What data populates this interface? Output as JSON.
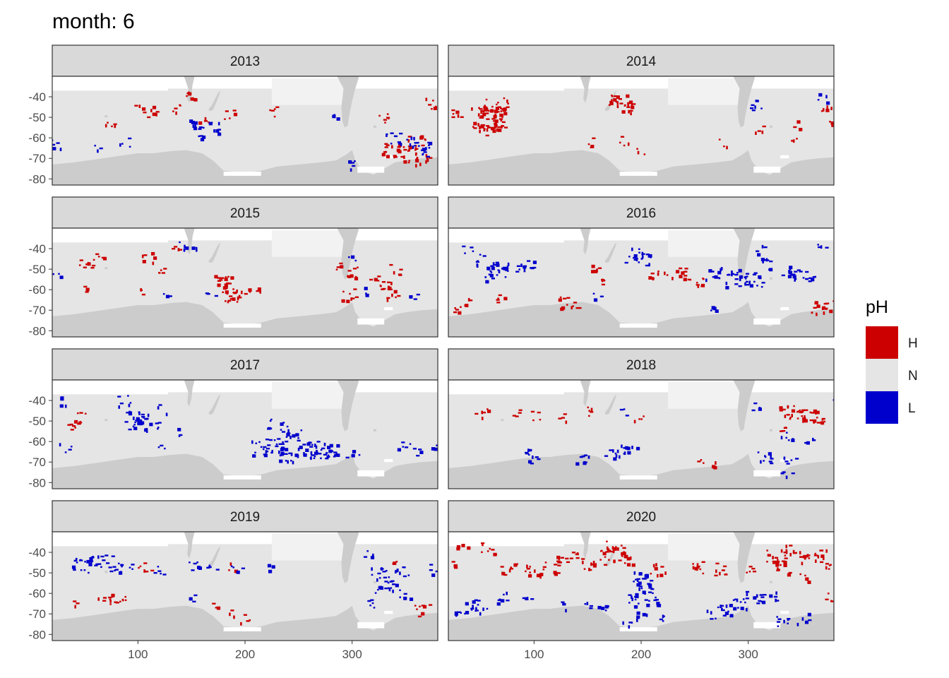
{
  "chart_data": {
    "type": "heatmap",
    "title": "month: 6",
    "facet_variable": "year",
    "x_ticks": [
      100,
      200,
      300
    ],
    "x_range": [
      20,
      380
    ],
    "y_ticks": [
      -40,
      -50,
      -60,
      -70,
      -80
    ],
    "y_range": [
      -83,
      -30
    ],
    "legend": {
      "title": "pH",
      "position": "right",
      "entries": [
        {
          "label": "H",
          "color": "#CC0000"
        },
        {
          "label": "N",
          "color": "#E5E5E5"
        },
        {
          "label": "L",
          "color": "#0000CC"
        }
      ]
    },
    "colors": {
      "ocean": "#E5E5E5",
      "land": "#CCCCCC",
      "ice_gap": "#FFFFFF",
      "strip_bg": "#D9D9D9",
      "border": "#333333"
    },
    "facets": [
      {
        "year": "2013",
        "H": [
          [
            112,
            -47,
            6
          ],
          [
            136,
            -45,
            5
          ],
          [
            151,
            -38,
            6
          ],
          [
            160,
            -52,
            4
          ],
          [
            185,
            -48,
            5
          ],
          [
            228,
            -47,
            5
          ],
          [
            330,
            -50,
            6
          ],
          [
            336,
            -66,
            14
          ],
          [
            352,
            -68,
            18
          ],
          [
            360,
            -62,
            12
          ],
          [
            365,
            -70,
            8
          ],
          [
            372,
            -43,
            6
          ],
          [
            74,
            -52,
            5
          ],
          [
            101,
            -46,
            4
          ]
        ],
        "L": [
          [
            155,
            -53,
            9
          ],
          [
            170,
            -55,
            7
          ],
          [
            158,
            -61,
            4
          ],
          [
            301,
            -73,
            5
          ],
          [
            338,
            -60,
            10
          ],
          [
            355,
            -62,
            8
          ],
          [
            366,
            -64,
            6
          ],
          [
            371,
            -67,
            6
          ],
          [
            25,
            -63,
            5
          ],
          [
            87,
            -62,
            4
          ],
          [
            60,
            -64,
            3
          ],
          [
            281,
            -50,
            3
          ]
        ]
      },
      {
        "year": "2014",
        "H": [
          [
            60,
            -50,
            42
          ],
          [
            48,
            -46,
            8
          ],
          [
            62,
            -44,
            10
          ],
          [
            73,
            -43,
            6
          ],
          [
            43,
            -54,
            6
          ],
          [
            56,
            -56,
            8
          ],
          [
            27,
            -47,
            6
          ],
          [
            173,
            -41,
            6
          ],
          [
            178,
            -42,
            10
          ],
          [
            184,
            -44,
            8
          ],
          [
            192,
            -45,
            5
          ],
          [
            155,
            -62,
            4
          ],
          [
            185,
            -61,
            4
          ],
          [
            200,
            -67,
            3
          ],
          [
            276,
            -62,
            3
          ],
          [
            310,
            -55,
            4
          ],
          [
            340,
            -59,
            3
          ],
          [
            345,
            -53,
            3
          ],
          [
            371,
            -45,
            5
          ],
          [
            374,
            -52,
            3
          ]
        ],
        "L": [
          [
            306,
            -46,
            4
          ],
          [
            370,
            -40,
            4
          ],
          [
            305,
            -42,
            3
          ]
        ]
      },
      {
        "year": "2015",
        "H": [
          [
            50,
            -47,
            8
          ],
          [
            62,
            -43,
            5
          ],
          [
            110,
            -44,
            6
          ],
          [
            120,
            -51,
            5
          ],
          [
            135,
            -39,
            4
          ],
          [
            180,
            -57,
            22
          ],
          [
            188,
            -63,
            10
          ],
          [
            197,
            -62,
            6
          ],
          [
            209,
            -59,
            4
          ],
          [
            288,
            -48,
            4
          ],
          [
            297,
            -62,
            8
          ],
          [
            302,
            -51,
            8
          ],
          [
            322,
            -55,
            6
          ],
          [
            330,
            -59,
            10
          ],
          [
            336,
            -62,
            5
          ],
          [
            340,
            -50,
            5
          ],
          [
            48,
            -60,
            3
          ],
          [
            100,
            -60,
            3
          ]
        ],
        "L": [
          [
            140,
            -38,
            4
          ],
          [
            128,
            -62,
            3
          ],
          [
            149,
            -38,
            3
          ],
          [
            23,
            -52,
            3
          ],
          [
            168,
            -62,
            3
          ],
          [
            298,
            -44,
            3
          ],
          [
            312,
            -60,
            3
          ],
          [
            356,
            -63,
            3
          ]
        ]
      },
      {
        "year": "2016",
        "H": [
          [
            236,
            -52,
            10
          ],
          [
            252,
            -55,
            8
          ],
          [
            157,
            -49,
            5
          ],
          [
            160,
            -55,
            4
          ],
          [
            125,
            -66,
            6
          ],
          [
            135,
            -66,
            6
          ],
          [
            68,
            -64,
            5
          ],
          [
            40,
            -66,
            4
          ],
          [
            30,
            -70,
            5
          ],
          [
            365,
            -68,
            10
          ],
          [
            374,
            -68,
            7
          ],
          [
            212,
            -53,
            4
          ],
          [
            219,
            -52,
            4
          ]
        ],
        "L": [
          [
            65,
            -51,
            28
          ],
          [
            88,
            -49,
            6
          ],
          [
            95,
            -48,
            6
          ],
          [
            48,
            -45,
            6
          ],
          [
            192,
            -43,
            14
          ],
          [
            205,
            -45,
            8
          ],
          [
            267,
            -52,
            10
          ],
          [
            289,
            -54,
            22
          ],
          [
            305,
            -55,
            14
          ],
          [
            315,
            -47,
            8
          ],
          [
            335,
            -51,
            10
          ],
          [
            348,
            -53,
            8
          ],
          [
            358,
            -55,
            6
          ],
          [
            265,
            -70,
            4
          ],
          [
            370,
            -40,
            4
          ],
          [
            37,
            -40,
            4
          ],
          [
            310,
            -40,
            4
          ],
          [
            158,
            -62,
            3
          ]
        ]
      },
      {
        "year": "2017",
        "H": [
          [
            37,
            -51,
            7
          ],
          [
            45,
            -48,
            5
          ]
        ],
        "L": [
          [
            87,
            -40,
            6
          ],
          [
            95,
            -47,
            10
          ],
          [
            105,
            -49,
            10
          ],
          [
            112,
            -52,
            8
          ],
          [
            95,
            -52,
            8
          ],
          [
            212,
            -63,
            14
          ],
          [
            228,
            -62,
            18
          ],
          [
            240,
            -66,
            14
          ],
          [
            245,
            -55,
            10
          ],
          [
            258,
            -62,
            18
          ],
          [
            268,
            -64,
            18
          ],
          [
            280,
            -64,
            12
          ],
          [
            300,
            -65,
            5
          ],
          [
            228,
            -52,
            10
          ],
          [
            348,
            -62,
            5
          ],
          [
            358,
            -65,
            4
          ],
          [
            377,
            -63,
            4
          ],
          [
            30,
            -40,
            4
          ],
          [
            32,
            -63,
            4
          ],
          [
            122,
            -44,
            3
          ],
          [
            140,
            -55,
            3
          ],
          [
            120,
            -62,
            3
          ]
        ]
      },
      {
        "year": "2018",
        "H": [
          [
            355,
            -48,
            16
          ],
          [
            345,
            -47,
            12
          ],
          [
            335,
            -45,
            10
          ],
          [
            50,
            -46,
            6
          ],
          [
            82,
            -46,
            4
          ],
          [
            100,
            -47,
            4
          ],
          [
            125,
            -48,
            4
          ],
          [
            153,
            -45,
            5
          ],
          [
            197,
            -49,
            4
          ],
          [
            330,
            -55,
            4
          ],
          [
            367,
            -50,
            4
          ],
          [
            253,
            -70,
            3
          ],
          [
            265,
            -70,
            3
          ]
        ],
        "L": [
          [
            315,
            -68,
            10
          ],
          [
            335,
            -58,
            6
          ],
          [
            338,
            -69,
            5
          ],
          [
            335,
            -75,
            4
          ],
          [
            92,
            -66,
            6
          ],
          [
            100,
            -68,
            5
          ],
          [
            150,
            -68,
            5
          ],
          [
            170,
            -65,
            6
          ],
          [
            180,
            -64,
            6
          ],
          [
            190,
            -64,
            5
          ],
          [
            140,
            -68,
            4
          ],
          [
            308,
            -42,
            4
          ],
          [
            356,
            -60,
            4
          ],
          [
            380,
            -40,
            3
          ],
          [
            185,
            -45,
            3
          ]
        ]
      },
      {
        "year": "2019",
        "H": [
          [
            70,
            -63,
            10
          ],
          [
            85,
            -64,
            6
          ],
          [
            37,
            -65,
            3
          ],
          [
            100,
            -47,
            4
          ],
          [
            110,
            -47,
            3
          ],
          [
            185,
            -47,
            3
          ],
          [
            170,
            -66,
            3
          ],
          [
            188,
            -69,
            3
          ],
          [
            200,
            -72,
            4
          ],
          [
            365,
            -68,
            8
          ],
          [
            340,
            -46,
            3
          ]
        ],
        "L": [
          [
            45,
            -46,
            16
          ],
          [
            58,
            -44,
            10
          ],
          [
            70,
            -44,
            8
          ],
          [
            80,
            -47,
            6
          ],
          [
            89,
            -46,
            5
          ],
          [
            118,
            -49,
            5
          ],
          [
            150,
            -46,
            6
          ],
          [
            168,
            -46,
            4
          ],
          [
            192,
            -47,
            4
          ],
          [
            222,
            -47,
            3
          ],
          [
            324,
            -50,
            10
          ],
          [
            338,
            -55,
            12
          ],
          [
            345,
            -49,
            8
          ],
          [
            327,
            -58,
            6
          ],
          [
            318,
            -64,
            5
          ],
          [
            348,
            -60,
            4
          ],
          [
            315,
            -40,
            4
          ],
          [
            375,
            -48,
            4
          ],
          [
            148,
            -62,
            3
          ]
        ]
      },
      {
        "year": "2020",
        "H": [
          [
            176,
            -40,
            16
          ],
          [
            168,
            -37,
            10
          ],
          [
            190,
            -44,
            8
          ],
          [
            160,
            -44,
            6
          ],
          [
            55,
            -38,
            8
          ],
          [
            75,
            -48,
            8
          ],
          [
            98,
            -48,
            10
          ],
          [
            115,
            -47,
            10
          ],
          [
            128,
            -44,
            8
          ],
          [
            140,
            -41,
            6
          ],
          [
            150,
            -46,
            6
          ],
          [
            215,
            -48,
            8
          ],
          [
            250,
            -47,
            10
          ],
          [
            275,
            -48,
            8
          ],
          [
            302,
            -47,
            5
          ],
          [
            325,
            -42,
            14
          ],
          [
            340,
            -39,
            10
          ],
          [
            330,
            -47,
            10
          ],
          [
            355,
            -42,
            10
          ],
          [
            368,
            -40,
            8
          ],
          [
            372,
            -45,
            6
          ],
          [
            352,
            -52,
            4
          ],
          [
            372,
            -62,
            4
          ],
          [
            24,
            -46,
            4
          ],
          [
            33,
            -38,
            4
          ]
        ],
        "L": [
          [
            204,
            -57,
            20
          ],
          [
            195,
            -63,
            12
          ],
          [
            210,
            -64,
            8
          ],
          [
            198,
            -52,
            10
          ],
          [
            200,
            -70,
            5
          ],
          [
            215,
            -72,
            4
          ],
          [
            188,
            -75,
            4
          ],
          [
            70,
            -62,
            8
          ],
          [
            50,
            -66,
            10
          ],
          [
            40,
            -66,
            6
          ],
          [
            32,
            -70,
            6
          ],
          [
            95,
            -62,
            5
          ],
          [
            127,
            -66,
            4
          ],
          [
            150,
            -66,
            4
          ],
          [
            165,
            -66,
            6
          ],
          [
            278,
            -68,
            10
          ],
          [
            290,
            -65,
            12
          ],
          [
            305,
            -62,
            10
          ],
          [
            320,
            -61,
            6
          ],
          [
            332,
            -73,
            8
          ],
          [
            350,
            -72,
            6
          ],
          [
            265,
            -70,
            4
          ]
        ]
      }
    ]
  }
}
